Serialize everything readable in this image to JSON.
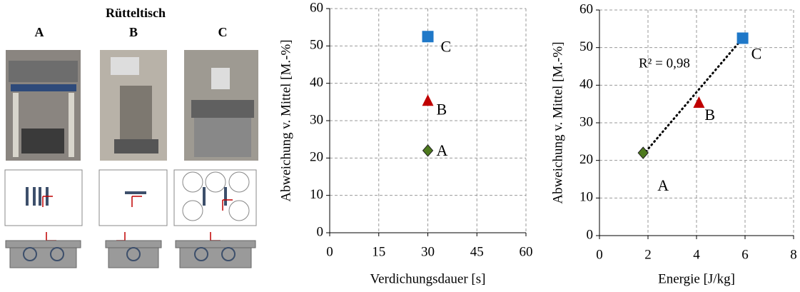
{
  "panel": {
    "title": "Rütteltisch",
    "labels": [
      "A",
      "B",
      "C"
    ]
  },
  "chart_data": [
    {
      "type": "scatter",
      "x_label": "Verdichungsdauer  [s]",
      "y_label": "Abweichung v. Mittel [M.-%]",
      "xlim": [
        0,
        60
      ],
      "xticks": [
        0,
        15,
        30,
        45,
        60
      ],
      "ylim": [
        0,
        60
      ],
      "yticks": [
        0,
        10,
        20,
        30,
        40,
        50,
        60
      ],
      "grid": true,
      "series": [
        {
          "name": "A",
          "color": "#4e7a1e",
          "marker": "diamond",
          "x": [
            30
          ],
          "values": [
            22
          ]
        },
        {
          "name": "B",
          "color": "#c00000",
          "marker": "triangle",
          "x": [
            30
          ],
          "values": [
            35.5
          ]
        },
        {
          "name": "C",
          "color": "#1f78c8",
          "marker": "square",
          "x": [
            30
          ],
          "values": [
            52.5
          ]
        }
      ]
    },
    {
      "type": "scatter",
      "x_label": "Energie  [J/kg]",
      "y_label": "Abweichung v. Mittel [M.-%]",
      "xlim": [
        0,
        8
      ],
      "xticks": [
        0,
        2,
        4,
        6,
        8
      ],
      "ylim": [
        0,
        60
      ],
      "yticks": [
        0,
        10,
        20,
        30,
        40,
        50,
        60
      ],
      "grid": true,
      "annotation": "R² = 0,98",
      "trendline": {
        "x": [
          1.8,
          5.9
        ],
        "values": [
          21.5,
          52.5
        ]
      },
      "series": [
        {
          "name": "A",
          "color": "#4e7a1e",
          "marker": "diamond",
          "x": [
            1.8
          ],
          "values": [
            22
          ]
        },
        {
          "name": "B",
          "color": "#c00000",
          "marker": "triangle",
          "x": [
            4.1
          ],
          "values": [
            35.5
          ]
        },
        {
          "name": "C",
          "color": "#1f78c8",
          "marker": "square",
          "x": [
            5.9
          ],
          "values": [
            52.5
          ]
        }
      ]
    }
  ]
}
